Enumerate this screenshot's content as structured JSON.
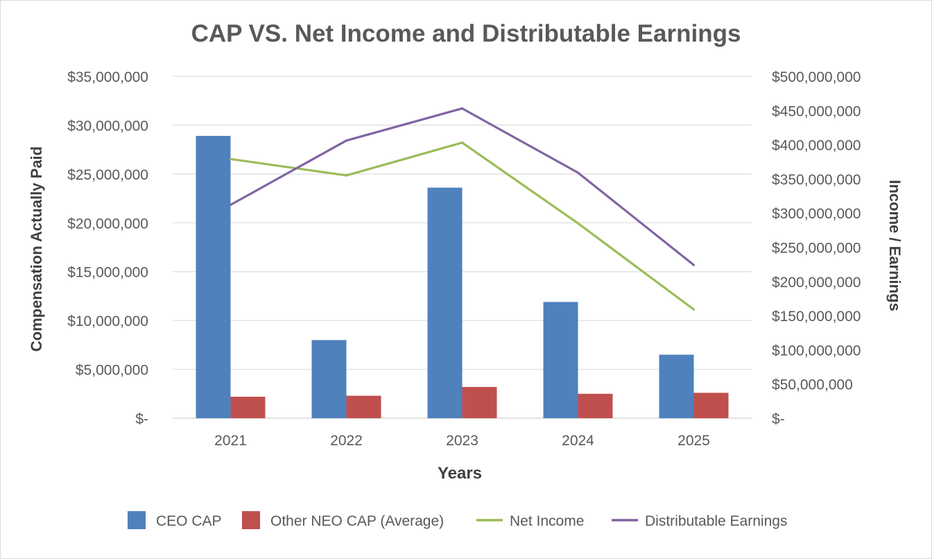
{
  "chart_data": {
    "type": "bar",
    "title": "CAP VS. Net Income and Distributable Earnings",
    "xlabel": "Years",
    "ylabel": "Compensation Actually Paid",
    "y2label": "Income / Earnings",
    "categories": [
      "2021",
      "2022",
      "2023",
      "2024",
      "2025"
    ],
    "ylim": [
      0,
      35000000
    ],
    "y2lim": [
      0,
      500000000
    ],
    "yticks": [
      "$-",
      "$5,000,000",
      "$10,000,000",
      "$15,000,000",
      "$20,000,000",
      "$25,000,000",
      "$30,000,000",
      "$35,000,000"
    ],
    "y2ticks": [
      "$-",
      "$50,000,000",
      "$100,000,000",
      "$150,000,000",
      "$200,000,000",
      "$250,000,000",
      "$300,000,000",
      "$350,000,000",
      "$400,000,000",
      "$450,000,000",
      "$500,000,000"
    ],
    "grid": true,
    "legend_position": "bottom",
    "series": [
      {
        "name": "CEO CAP",
        "kind": "bar",
        "axis": "left",
        "color": "#4f81bd",
        "values": [
          28900000,
          8000000,
          23600000,
          11900000,
          6500000
        ]
      },
      {
        "name": "Other NEO CAP (Average)",
        "kind": "bar",
        "axis": "left",
        "color": "#c0504d",
        "values": [
          2200000,
          2300000,
          3200000,
          2500000,
          2600000
        ]
      },
      {
        "name": "Net Income",
        "kind": "line",
        "axis": "right",
        "color": "#9bbb59",
        "values": [
          379000000,
          355000000,
          403000000,
          285000000,
          159000000
        ]
      },
      {
        "name": "Distributable Earnings",
        "kind": "line",
        "axis": "right",
        "color": "#8064a2",
        "values": [
          312000000,
          406000000,
          453000000,
          359000000,
          224000000
        ]
      }
    ]
  }
}
